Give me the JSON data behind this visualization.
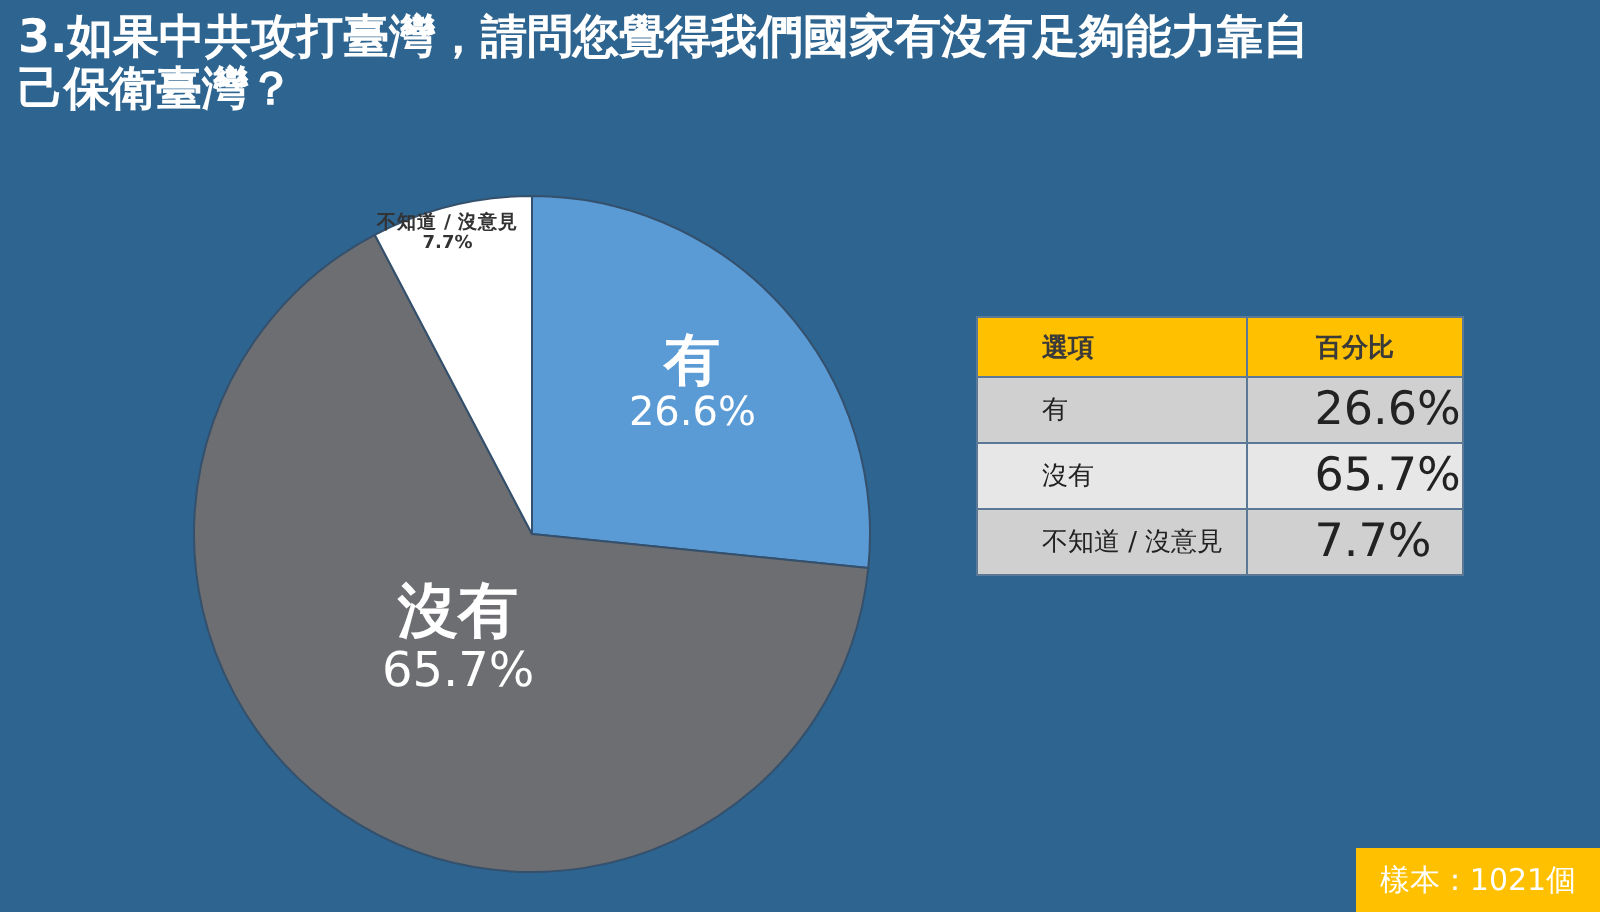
{
  "chart_data": {
    "type": "pie",
    "title": "3.如果中共攻打臺灣，請問您覺得我們國家有沒有足夠能力靠自己保衛臺灣？",
    "categories": [
      "有",
      "沒有",
      "不知道 / 沒意見"
    ],
    "values": [
      26.6,
      65.7,
      7.7
    ],
    "value_labels": [
      "26.6%",
      "65.7%",
      "7.7%"
    ],
    "colors": [
      "#5b9bd5",
      "#6d6e71",
      "#ffffff"
    ],
    "annotations": [
      "選項",
      "百分比",
      "樣本：1021個"
    ]
  }
}
